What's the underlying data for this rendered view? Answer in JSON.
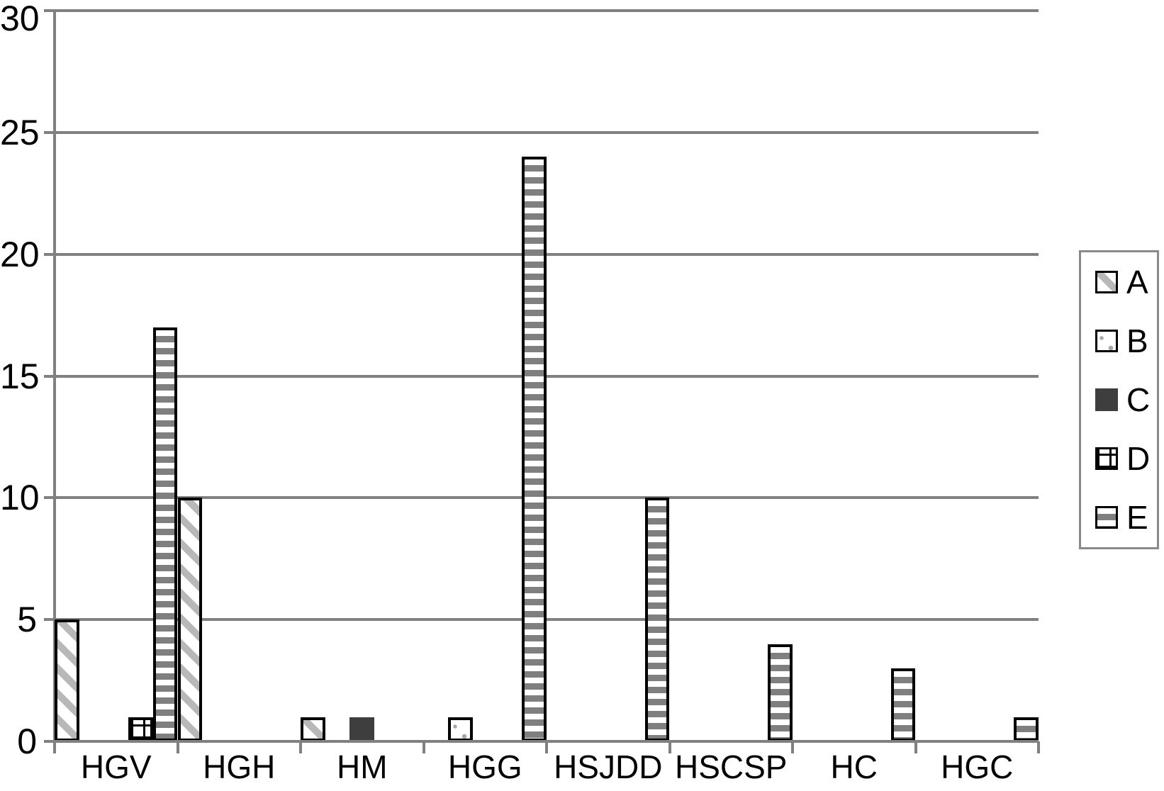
{
  "chart_data": {
    "type": "bar",
    "title": "",
    "xlabel": "",
    "ylabel": "",
    "categories": [
      "HGV",
      "HGH",
      "HM",
      "HGG",
      "HSJDD",
      "HSCSP",
      "HC",
      "HGC"
    ],
    "series": [
      {
        "name": "A",
        "pattern": "diagonal-stripes",
        "values": [
          5,
          10,
          1,
          0,
          0,
          0,
          0,
          0
        ]
      },
      {
        "name": "B",
        "pattern": "sparse-dots",
        "values": [
          0,
          0,
          0,
          1,
          0,
          0,
          0,
          0
        ]
      },
      {
        "name": "C",
        "pattern": "solid-dark",
        "values": [
          0,
          0,
          1,
          0,
          0,
          0,
          0,
          0
        ]
      },
      {
        "name": "D",
        "pattern": "grid",
        "values": [
          1,
          0,
          0,
          0,
          0,
          0,
          0,
          0
        ]
      },
      {
        "name": "E",
        "pattern": "horizontal-stripes",
        "values": [
          17,
          0,
          0,
          24,
          10,
          4,
          3,
          1
        ]
      }
    ],
    "ylim": [
      0,
      30
    ],
    "yticks": [
      0,
      5,
      10,
      15,
      20,
      25,
      30
    ],
    "grid": true,
    "legend": {
      "position": "right",
      "entries": [
        "A",
        "B",
        "C",
        "D",
        "E"
      ]
    }
  },
  "colors": {
    "background": "#ffffff",
    "axis_and_grid": "#808080",
    "bar_outline": "#000000",
    "diagonal_stripe_gray": "#b8b8b8",
    "horizontal_stripe_gray": "#7f7f7f",
    "solid_dark_gray": "#3e3e3e",
    "dot_gray": "#a8a8a8",
    "legend_border": "#8a8a8a",
    "text": "#000000"
  }
}
